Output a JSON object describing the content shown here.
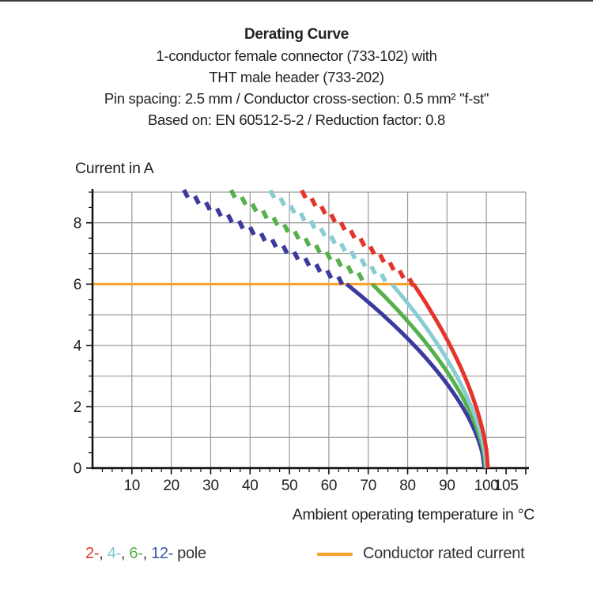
{
  "page": {
    "top_border_color": "#3b3b3b",
    "background": "#ffffff"
  },
  "header": {
    "title": "Derating Curve",
    "lines": [
      "1-conductor female connector (733-102) with",
      "THT male header (733-202)",
      "Pin spacing: 2.5 mm / Conductor cross-section: 0.5 mm² \"f-st\"",
      "Based on: EN 60512-5-2 / Reduction factor: 0.8"
    ]
  },
  "chart_data": {
    "type": "line",
    "title": "Derating Curve",
    "ylabel": "Current in A",
    "xlabel": "Ambient operating temperature in °C",
    "x_range": [
      0,
      110
    ],
    "y_range": [
      0,
      9
    ],
    "x_gridline_step": 10,
    "y_gridline_step": 1,
    "x_minor_tick_step": 2.5,
    "y_minor_tick_step": 0.5,
    "x_tick_labels": [
      10,
      20,
      30,
      40,
      50,
      60,
      70,
      80,
      90,
      100,
      105
    ],
    "y_tick_labels": [
      0,
      2,
      4,
      6,
      8
    ],
    "grid": true,
    "gridline_color": "#9a9a9a",
    "axis_color": "#111111",
    "tick_label_color": "#222222",
    "rated_current": {
      "label": "Conductor rated current",
      "value_a": 6,
      "x_start_c": 0,
      "x_end_c": 81.5,
      "color": "#f7a02c"
    },
    "series": [
      {
        "name": "12-pole",
        "color": "#3b3a9e",
        "top_current_a": 9,
        "dash_start_c": 23,
        "knee_c": 64.5,
        "knee_current_a": 6,
        "zero_c": 99.5,
        "curve_exponent": 0.6
      },
      {
        "name": "6-pole",
        "color": "#56b04b",
        "top_current_a": 9,
        "dash_start_c": 35,
        "knee_c": 71,
        "knee_current_a": 6,
        "zero_c": 99.8,
        "curve_exponent": 0.6
      },
      {
        "name": "4-pole",
        "color": "#8accd3",
        "top_current_a": 9,
        "dash_start_c": 45,
        "knee_c": 76,
        "knee_current_a": 6,
        "zero_c": 100.0,
        "curve_exponent": 0.6
      },
      {
        "name": "2-pole",
        "color": "#e5352b",
        "top_current_a": 9,
        "dash_start_c": 53,
        "knee_c": 81.5,
        "knee_current_a": 6,
        "zero_c": 100.4,
        "curve_exponent": 0.6
      }
    ],
    "legend": {
      "pole_items": [
        {
          "label": "2-",
          "color": "#e5352b"
        },
        {
          "label": "4-",
          "color": "#7fc8d2"
        },
        {
          "label": "6-",
          "color": "#53b149"
        },
        {
          "label": "12-",
          "color": "#3a57a8"
        }
      ],
      "separator": ", ",
      "separator_color": "#333333",
      "suffix": "pole",
      "rated_label": "Conductor rated current"
    }
  }
}
